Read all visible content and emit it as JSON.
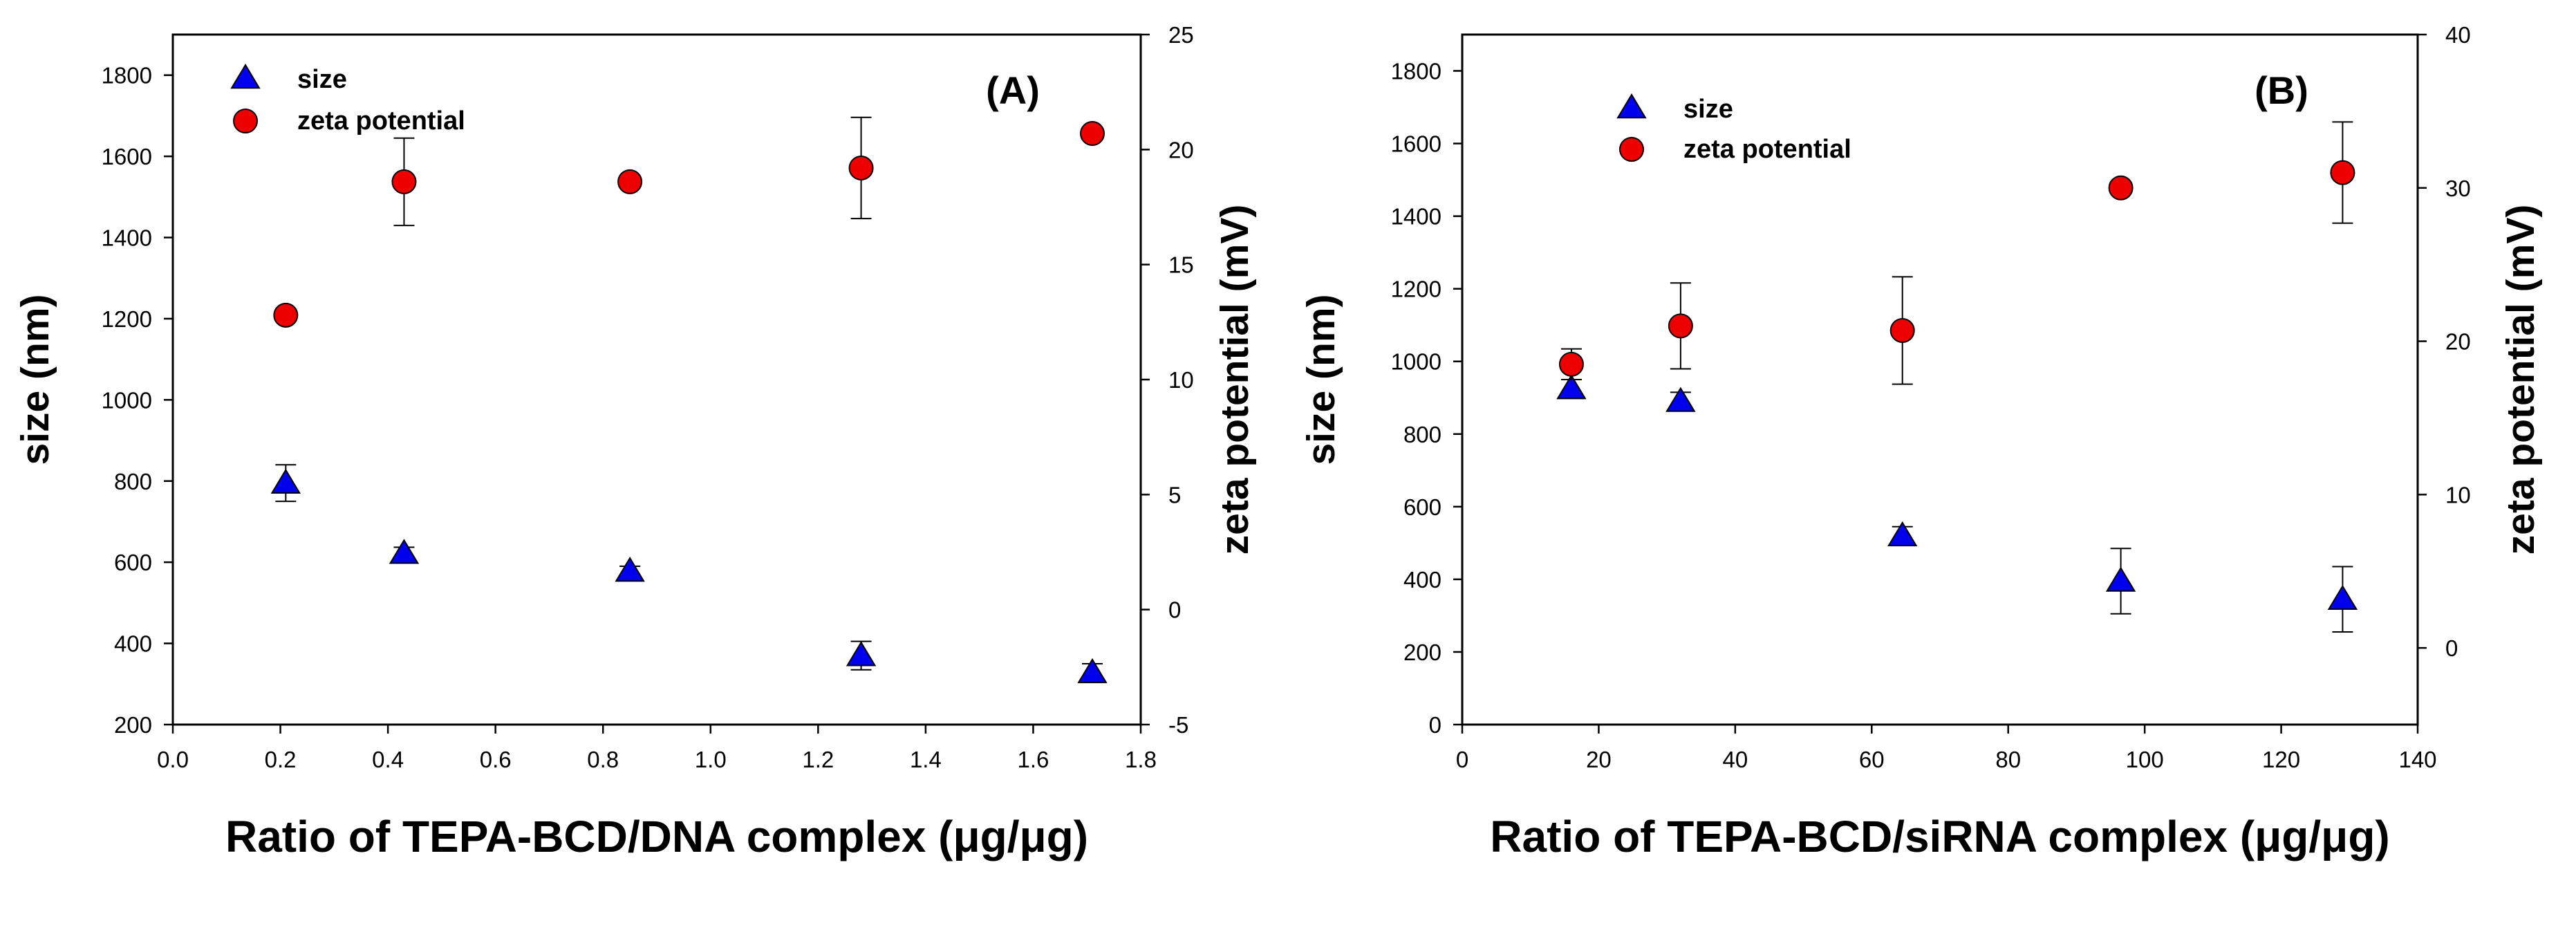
{
  "chart_data": [
    {
      "type": "scatter",
      "panel_label": "(A)",
      "xlabel": "Ratio of TEPA-BCD/DNA complex (μg/μg)",
      "ylabel": "size (nm)",
      "y2label": "zeta potential (mV)",
      "xlim": [
        0.0,
        1.8
      ],
      "ylim": [
        200,
        1900
      ],
      "y2lim": [
        -5,
        25
      ],
      "xticks": [
        "0.0",
        "0.2",
        "0.4",
        "0.6",
        "0.8",
        "1.0",
        "1.2",
        "1.4",
        "1.6",
        "1.8"
      ],
      "yticks": [
        "200",
        "400",
        "600",
        "800",
        "1000",
        "1200",
        "1400",
        "1600",
        "1800"
      ],
      "y2ticks": [
        "-5",
        "0",
        "5",
        "10",
        "15",
        "20",
        "25"
      ],
      "legend": [
        "size",
        "zeta potential"
      ],
      "legend_position": "top-left",
      "series": [
        {
          "name": "size",
          "axis": "left",
          "marker": "triangle",
          "color": "#0000ee",
          "points": [
            {
              "x": 0.21,
              "y": 795,
              "err": 45
            },
            {
              "x": 0.43,
              "y": 622,
              "err": 15
            },
            {
              "x": 0.85,
              "y": 578,
              "err": 12
            },
            {
              "x": 1.28,
              "y": 370,
              "err": 35
            },
            {
              "x": 1.71,
              "y": 328,
              "err": 22
            }
          ]
        },
        {
          "name": "zeta potential",
          "axis": "right",
          "marker": "circle",
          "color": "#ee0000",
          "points": [
            {
              "x": 0.21,
              "y": 12.8,
              "err": 0.0
            },
            {
              "x": 0.43,
              "y": 18.6,
              "err": 1.9
            },
            {
              "x": 0.85,
              "y": 18.6,
              "err": 0.2
            },
            {
              "x": 1.28,
              "y": 19.2,
              "err": 2.2
            },
            {
              "x": 1.71,
              "y": 20.7,
              "err": 0.2
            }
          ]
        }
      ]
    },
    {
      "type": "scatter",
      "panel_label": "(B)",
      "xlabel": "Ratio of TEPA-BCD/siRNA complex (μg/μg)",
      "ylabel": "size (nm)",
      "y2label": "zeta potential (mV)",
      "xlim": [
        0,
        140
      ],
      "ylim": [
        0,
        1900
      ],
      "y2lim": [
        -5,
        40
      ],
      "xticks": [
        "0",
        "20",
        "40",
        "60",
        "80",
        "100",
        "120",
        "140"
      ],
      "yticks": [
        "0",
        "200",
        "400",
        "600",
        "800",
        "1000",
        "1200",
        "1400",
        "1600",
        "1800"
      ],
      "y2ticks": [
        "0",
        "10",
        "20",
        "30",
        "40"
      ],
      "legend": [
        "size",
        "zeta potential"
      ],
      "legend_position": "top-left",
      "series": [
        {
          "name": "size",
          "axis": "left",
          "marker": "triangle",
          "color": "#0000ee",
          "points": [
            {
              "x": 16,
              "y": 925,
              "err": 25
            },
            {
              "x": 32,
              "y": 890,
              "err": 25
            },
            {
              "x": 64.5,
              "y": 520,
              "err": 25
            },
            {
              "x": 96.5,
              "y": 395,
              "err": 90
            },
            {
              "x": 129,
              "y": 345,
              "err": 90
            }
          ]
        },
        {
          "name": "zeta potential",
          "axis": "right",
          "marker": "circle",
          "color": "#ee0000",
          "points": [
            {
              "x": 16,
              "y": 18.5,
              "err": 1.0
            },
            {
              "x": 32,
              "y": 21.0,
              "err": 2.8
            },
            {
              "x": 64.5,
              "y": 20.7,
              "err": 3.5
            },
            {
              "x": 96.5,
              "y": 30.0,
              "err": 0.2
            },
            {
              "x": 129,
              "y": 31.0,
              "err": 3.3
            }
          ]
        }
      ]
    }
  ]
}
